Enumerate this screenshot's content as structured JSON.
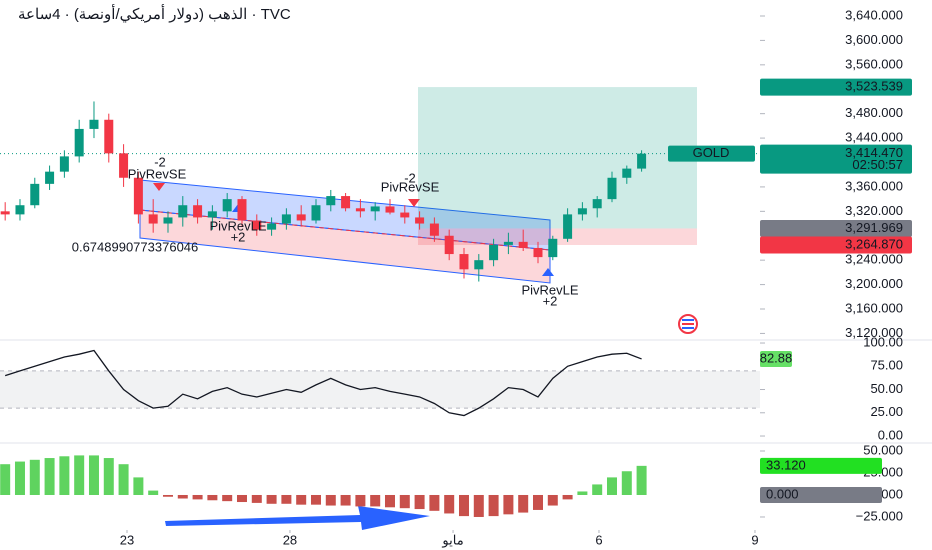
{
  "chart_data": [
    {
      "type": "candlestick",
      "title": "الذهب (دولار أمريكي/أونصة) · 4ساعة · TVC",
      "symbol": "GOLD",
      "countdown": "02:50:57",
      "xlim": [
        -0.35,
        51
      ],
      "ylim": [
        3112.5,
        3666.2
      ],
      "yticks": [
        {
          "value": 3120,
          "label": "3,120.000"
        },
        {
          "value": 3160,
          "label": "3,160.000"
        },
        {
          "value": 3200,
          "label": "3,200.000"
        },
        {
          "value": 3240,
          "label": "3,240.000"
        },
        {
          "value": 3320,
          "label": "3,320.000"
        },
        {
          "value": 3360,
          "label": "3,360.000"
        },
        {
          "value": 3440,
          "label": "3,440.000"
        },
        {
          "value": 3480,
          "label": "3,480.000"
        },
        {
          "value": 3560,
          "label": "3,560.000"
        },
        {
          "value": 3600,
          "label": "3,600.000"
        },
        {
          "value": 3640,
          "label": "3,640.000"
        }
      ],
      "open": [
        3320,
        3315,
        3330,
        3365,
        3385,
        3410,
        3455,
        3470,
        3415,
        3375,
        3315,
        3300,
        3310,
        3330,
        3310,
        3320,
        3340,
        3305,
        3290,
        3300,
        3315,
        3305,
        3330,
        3345,
        3325,
        3320,
        3328,
        3318,
        3310,
        3300,
        3280,
        3250,
        3225,
        3240,
        3265,
        3270,
        3260,
        3245,
        3275,
        3315,
        3325,
        3340,
        3375,
        3390
      ],
      "high": [
        3335,
        3340,
        3375,
        3395,
        3420,
        3470,
        3500,
        3480,
        3430,
        3385,
        3340,
        3320,
        3345,
        3340,
        3330,
        3350,
        3345,
        3315,
        3310,
        3325,
        3330,
        3340,
        3355,
        3350,
        3340,
        3335,
        3340,
        3330,
        3320,
        3310,
        3290,
        3260,
        3250,
        3275,
        3285,
        3290,
        3270,
        3280,
        3325,
        3335,
        3345,
        3385,
        3395,
        3420
      ],
      "low": [
        3305,
        3305,
        3325,
        3355,
        3375,
        3400,
        3440,
        3400,
        3360,
        3300,
        3285,
        3285,
        3295,
        3300,
        3290,
        3310,
        3295,
        3280,
        3280,
        3290,
        3295,
        3300,
        3320,
        3320,
        3310,
        3305,
        3315,
        3300,
        3290,
        3270,
        3240,
        3210,
        3205,
        3230,
        3250,
        3255,
        3235,
        3240,
        3270,
        3305,
        3310,
        3335,
        3365,
        3385
      ],
      "close": [
        3315,
        3330,
        3365,
        3385,
        3410,
        3455,
        3470,
        3415,
        3375,
        3315,
        3300,
        3310,
        3330,
        3310,
        3320,
        3340,
        3305,
        3290,
        3300,
        3315,
        3305,
        3330,
        3345,
        3325,
        3320,
        3328,
        3318,
        3310,
        3300,
        3280,
        3250,
        3225,
        3240,
        3265,
        3270,
        3260,
        3245,
        3275,
        3315,
        3325,
        3340,
        3375,
        3390,
        3414.47
      ],
      "up_color": "#089981",
      "down_color": "#f23645",
      "levels": [
        {
          "value": 3523.539,
          "label": "3,523.539",
          "color": "#089981"
        },
        {
          "value": 3414.47,
          "label": "3,414.470",
          "color": "#089981"
        },
        {
          "value": 3291.969,
          "label": "3,291.969",
          "color": "#787b86"
        },
        {
          "value": 3264.87,
          "label": "3,264.870",
          "color": "#f23645"
        }
      ],
      "annotations": [
        "-2",
        "PivRevSE",
        "PivRevLE",
        "+2",
        "-2",
        "PivRevSE",
        "PivRevLE",
        "+2",
        "0.6748990773376046"
      ]
    },
    {
      "type": "line",
      "xlim": [
        -0.35,
        51
      ],
      "ylim": [
        -7.5,
        105.4
      ],
      "yticks": [
        {
          "value": 0,
          "label": "0.00"
        },
        {
          "value": 25,
          "label": "25.00"
        },
        {
          "value": 50,
          "label": "50.00"
        },
        {
          "value": 75,
          "label": "75.00"
        },
        {
          "value": 100,
          "label": "100.00"
        }
      ],
      "bands": [
        30,
        70
      ],
      "color": "#131722",
      "values": [
        65,
        70,
        75,
        80,
        85,
        88,
        92,
        70,
        50,
        38,
        30,
        32,
        45,
        40,
        48,
        52,
        45,
        42,
        46,
        50,
        47,
        55,
        62,
        55,
        50,
        52,
        48,
        45,
        42,
        35,
        25,
        22,
        30,
        40,
        52,
        50,
        42,
        62,
        75,
        80,
        85,
        88,
        89,
        82.88
      ],
      "value_labels": [
        {
          "value": 82.88,
          "label": "82.88",
          "color": "#66e066"
        }
      ]
    },
    {
      "type": "bar",
      "xlim": [
        -0.35,
        51
      ],
      "ylim": [
        -39.8,
        59.1
      ],
      "yticks": [
        {
          "value": -25,
          "label": "−25.000"
        },
        {
          "value": 0,
          "label": "0.000"
        },
        {
          "value": 25,
          "label": "25.000"
        },
        {
          "value": 50,
          "label": "50.000"
        }
      ],
      "pos_color": "#5fd35f",
      "neg_color": "#c8504b",
      "values": [
        35,
        38,
        40,
        42,
        44,
        45,
        45,
        42,
        35,
        20,
        5,
        -2,
        -4,
        -5,
        -6,
        -7,
        -8,
        -9,
        -10,
        -10,
        -11,
        -11,
        -12,
        -12,
        -13,
        -13,
        -14,
        -15,
        -16,
        -18,
        -21,
        -24,
        -25,
        -24,
        -22,
        -20,
        -17,
        -12,
        -5,
        4,
        12,
        20,
        27,
        33.12
      ],
      "value_labels": [
        {
          "value": 33.12,
          "label": "33.120",
          "color": "#22e022"
        },
        {
          "value": 0,
          "label": "0.000",
          "color": "#787b86"
        }
      ],
      "xticks": [
        {
          "value": 8.23,
          "label": "23"
        },
        {
          "value": 19.24,
          "label": "28"
        },
        {
          "value": 30.26,
          "label": "مايو"
        },
        {
          "value": 40.12,
          "label": "6"
        },
        {
          "value": 50.66,
          "label": "9"
        }
      ]
    }
  ]
}
